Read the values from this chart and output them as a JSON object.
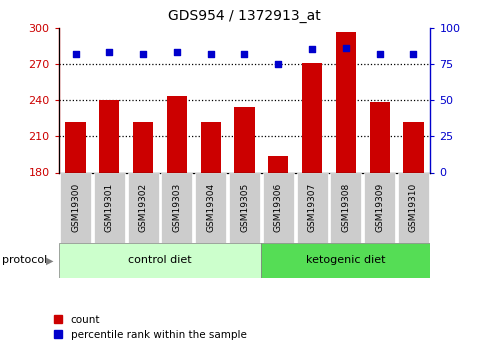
{
  "title": "GDS954 / 1372913_at",
  "samples": [
    "GSM19300",
    "GSM19301",
    "GSM19302",
    "GSM19303",
    "GSM19304",
    "GSM19305",
    "GSM19306",
    "GSM19307",
    "GSM19308",
    "GSM19309",
    "GSM19310"
  ],
  "counts": [
    222,
    240,
    222,
    243,
    222,
    234,
    194,
    271,
    296,
    238,
    222
  ],
  "percentile_ranks": [
    82,
    83,
    82,
    83,
    82,
    82,
    75,
    85,
    86,
    82,
    82
  ],
  "bar_bottom": 180,
  "ylim_left": [
    180,
    300
  ],
  "ylim_right": [
    0,
    100
  ],
  "yticks_left": [
    180,
    210,
    240,
    270,
    300
  ],
  "yticks_right": [
    0,
    25,
    50,
    75,
    100
  ],
  "bar_color": "#cc0000",
  "dot_color": "#0000cc",
  "control_diet_color": "#ccffcc",
  "ketogenic_diet_color": "#55dd55",
  "xtick_bg_color": "#cccccc",
  "n_control": 6,
  "n_ketogenic": 5,
  "legend_labels": [
    "count",
    "percentile rank within the sample"
  ]
}
